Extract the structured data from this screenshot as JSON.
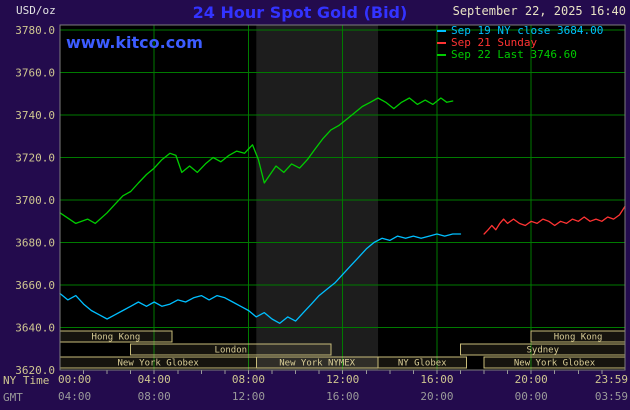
{
  "watermark": "www.kitco.com",
  "colors": {
    "frame_bg": "#230b4d",
    "plot_bg": "#000000",
    "band": "#1d1d1d",
    "grid": "#007a00",
    "axis_border": "#7d7d7d",
    "tick_mark": "#999999",
    "title": "#3333ff",
    "watermark": "#3c5cff",
    "date_text": "#e8e2c4",
    "tick_text": "#cfc690",
    "gmt_text": "#9a9a9a",
    "units_text": "#e2e2e2",
    "session_border": "#c8bc7a",
    "session_text": "#d8cc96",
    "session_fill": "rgba(214,201,140,0.10)"
  },
  "chart_data": {
    "type": "line",
    "title": "24 Hour Spot Gold (Bid)",
    "datetime": "September 22, 2025 16:40",
    "ylabel": "USD/oz",
    "xlabel": "NY Time",
    "ylim": [
      3620,
      3780
    ],
    "grid": true,
    "legend_position": "top-right",
    "y_tick_values": [
      3780,
      3760,
      3740,
      3720,
      3700,
      3680,
      3660,
      3640,
      3620
    ],
    "y_tick_labels": [
      "3780.0",
      "3760.0",
      "3740.0",
      "3720.0",
      "3700.0",
      "3680.0",
      "3660.0",
      "3640.0",
      "3620.0"
    ],
    "x_axis": {
      "ny_label": "NY Time",
      "gmt_label": "GMT",
      "hours_max": 23.983,
      "hours": [
        0,
        4,
        8,
        12,
        16,
        20,
        23.983
      ],
      "ny_ticks": [
        "00:00",
        "04:00",
        "08:00",
        "12:00",
        "16:00",
        "20:00",
        "23:59"
      ],
      "gmt_ticks": [
        "04:00",
        "08:00",
        "12:00",
        "16:00",
        "20:00",
        "00:00",
        "03:59"
      ]
    },
    "highlight_band_hours": [
      8.333,
      13.5
    ],
    "legend": [
      {
        "text": "Sep 19 NY close 3684.00",
        "color": "#00bfff"
      },
      {
        "text": "Sep 21 Sunday",
        "color": "#ff3333"
      },
      {
        "text": "Sep 22 Last 3746.60",
        "color": "#00cc00"
      }
    ],
    "series": [
      {
        "id": "sep19",
        "name": "Sep 19 NY close 3684.00",
        "color": "#00bfff",
        "points": [
          [
            0,
            3656
          ],
          [
            0.33,
            3653
          ],
          [
            0.67,
            3655
          ],
          [
            1,
            3651
          ],
          [
            1.33,
            3648
          ],
          [
            1.67,
            3646
          ],
          [
            2,
            3644
          ],
          [
            2.33,
            3646
          ],
          [
            2.67,
            3648
          ],
          [
            3,
            3650
          ],
          [
            3.33,
            3652
          ],
          [
            3.67,
            3650
          ],
          [
            4,
            3652
          ],
          [
            4.33,
            3650
          ],
          [
            4.67,
            3651
          ],
          [
            5,
            3653
          ],
          [
            5.33,
            3652
          ],
          [
            5.67,
            3654
          ],
          [
            6,
            3655
          ],
          [
            6.33,
            3653
          ],
          [
            6.67,
            3655
          ],
          [
            7,
            3654
          ],
          [
            7.33,
            3652
          ],
          [
            7.67,
            3650
          ],
          [
            8,
            3648
          ],
          [
            8.33,
            3645
          ],
          [
            8.67,
            3647
          ],
          [
            9,
            3644
          ],
          [
            9.33,
            3642
          ],
          [
            9.67,
            3645
          ],
          [
            10,
            3643
          ],
          [
            10.33,
            3647
          ],
          [
            10.67,
            3651
          ],
          [
            11,
            3655
          ],
          [
            11.33,
            3658
          ],
          [
            11.67,
            3661
          ],
          [
            12,
            3665
          ],
          [
            12.33,
            3669
          ],
          [
            12.67,
            3673
          ],
          [
            13,
            3677
          ],
          [
            13.33,
            3680
          ],
          [
            13.67,
            3682
          ],
          [
            14,
            3681
          ],
          [
            14.33,
            3683
          ],
          [
            14.67,
            3682
          ],
          [
            15,
            3683
          ],
          [
            15.33,
            3682
          ],
          [
            15.67,
            3683
          ],
          [
            16,
            3684
          ],
          [
            16.33,
            3683
          ],
          [
            16.67,
            3684
          ],
          [
            17,
            3684
          ]
        ]
      },
      {
        "id": "sep21",
        "name": "Sep 21 Sunday",
        "color": "#ff3333",
        "points": [
          [
            18,
            3684
          ],
          [
            18.17,
            3686
          ],
          [
            18.33,
            3688
          ],
          [
            18.5,
            3686
          ],
          [
            18.67,
            3689
          ],
          [
            18.83,
            3691
          ],
          [
            19,
            3689
          ],
          [
            19.25,
            3691
          ],
          [
            19.5,
            3689
          ],
          [
            19.75,
            3688
          ],
          [
            20,
            3690
          ],
          [
            20.25,
            3689
          ],
          [
            20.5,
            3691
          ],
          [
            20.75,
            3690
          ],
          [
            21,
            3688
          ],
          [
            21.25,
            3690
          ],
          [
            21.5,
            3689
          ],
          [
            21.75,
            3691
          ],
          [
            22,
            3690
          ],
          [
            22.25,
            3692
          ],
          [
            22.5,
            3690
          ],
          [
            22.75,
            3691
          ],
          [
            23,
            3690
          ],
          [
            23.25,
            3692
          ],
          [
            23.5,
            3691
          ],
          [
            23.75,
            3693
          ],
          [
            23.983,
            3697
          ]
        ]
      },
      {
        "id": "sep22",
        "name": "Sep 22 Last 3746.60",
        "color": "#00cc00",
        "points": [
          [
            0,
            3694
          ],
          [
            0.67,
            3689
          ],
          [
            1.17,
            3691
          ],
          [
            1.5,
            3689
          ],
          [
            2,
            3694
          ],
          [
            2.33,
            3698
          ],
          [
            2.67,
            3702
          ],
          [
            3,
            3704
          ],
          [
            3.33,
            3708
          ],
          [
            3.67,
            3712
          ],
          [
            4,
            3715
          ],
          [
            4.33,
            3719
          ],
          [
            4.67,
            3722
          ],
          [
            4.92,
            3721
          ],
          [
            5.17,
            3713
          ],
          [
            5.5,
            3716
          ],
          [
            5.83,
            3713
          ],
          [
            6.17,
            3717
          ],
          [
            6.5,
            3720
          ],
          [
            6.83,
            3718
          ],
          [
            7.17,
            3721
          ],
          [
            7.5,
            3723
          ],
          [
            7.83,
            3722
          ],
          [
            8,
            3724
          ],
          [
            8.17,
            3726
          ],
          [
            8.42,
            3719
          ],
          [
            8.67,
            3708
          ],
          [
            8.92,
            3712
          ],
          [
            9.17,
            3716
          ],
          [
            9.5,
            3713
          ],
          [
            9.83,
            3717
          ],
          [
            10.17,
            3715
          ],
          [
            10.5,
            3719
          ],
          [
            10.83,
            3724
          ],
          [
            11.17,
            3729
          ],
          [
            11.5,
            3733
          ],
          [
            11.83,
            3735
          ],
          [
            12.17,
            3738
          ],
          [
            12.5,
            3741
          ],
          [
            12.83,
            3744
          ],
          [
            13.17,
            3746
          ],
          [
            13.5,
            3748
          ],
          [
            13.83,
            3746
          ],
          [
            14.17,
            3743
          ],
          [
            14.5,
            3746
          ],
          [
            14.83,
            3748
          ],
          [
            15.17,
            3745
          ],
          [
            15.5,
            3747
          ],
          [
            15.83,
            3745
          ],
          [
            16.17,
            3748
          ],
          [
            16.42,
            3746
          ],
          [
            16.67,
            3746.6
          ]
        ]
      }
    ],
    "sessions": [
      {
        "label": "Hong Kong",
        "row": 0,
        "start": 0,
        "end": 4.75
      },
      {
        "label": "Hong Kong",
        "row": 0,
        "start": 20.0,
        "end": 23.983
      },
      {
        "label": "London",
        "row": 1,
        "start": 3.0,
        "end": 11.5
      },
      {
        "label": "Sydney",
        "row": 1,
        "start": 17.0,
        "end": 23.983
      },
      {
        "label": "New York Globex",
        "row": 2,
        "start": 0,
        "end": 8.333
      },
      {
        "label": "New York NYMEX",
        "row": 2,
        "start": 8.333,
        "end": 13.5
      },
      {
        "label": "NY Globex",
        "row": 2,
        "start": 13.5,
        "end": 17.25
      },
      {
        "label": "New York Globex",
        "row": 2,
        "start": 18.0,
        "end": 23.983
      }
    ]
  }
}
